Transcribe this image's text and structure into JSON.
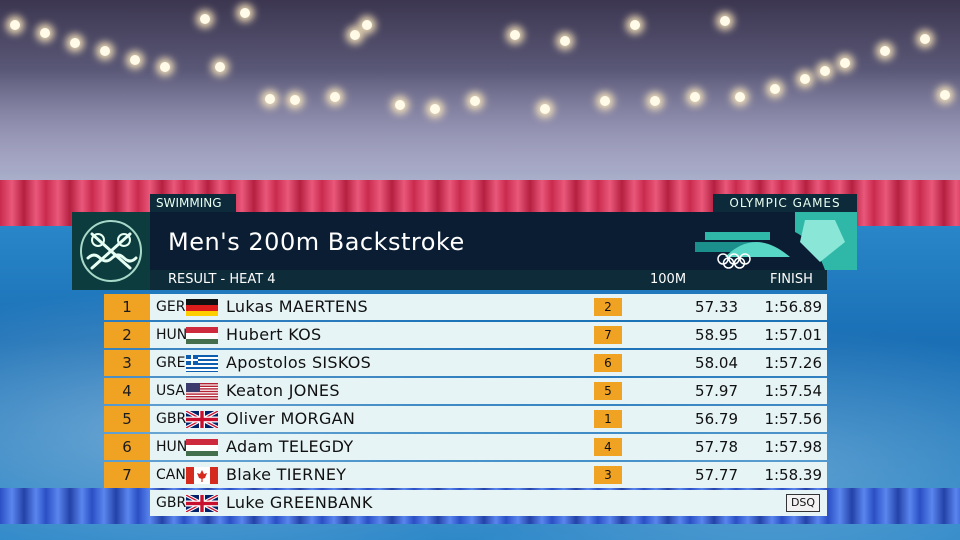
{
  "broadcast": {
    "sport": "SWIMMING",
    "event_title": "Men's 200m Backstroke",
    "olympic_games": "OLYMPIC GAMES",
    "subheader": {
      "result": "RESULT - HEAT 4",
      "split_label": "100M",
      "finish_label": "FINISH"
    }
  },
  "results": [
    {
      "rank": "1",
      "noc": "GER",
      "flag": "germany-flag",
      "name": "Lukas MAERTENS",
      "pos100": "2",
      "split": "57.33",
      "finish": "1:56.89"
    },
    {
      "rank": "2",
      "noc": "HUN",
      "flag": "hungary-flag",
      "name": "Hubert KOS",
      "pos100": "7",
      "split": "58.95",
      "finish": "1:57.01"
    },
    {
      "rank": "3",
      "noc": "GRE",
      "flag": "greece-flag",
      "name": "Apostolos SISKOS",
      "pos100": "6",
      "split": "58.04",
      "finish": "1:57.26"
    },
    {
      "rank": "4",
      "noc": "USA",
      "flag": "usa-flag",
      "name": "Keaton JONES",
      "pos100": "5",
      "split": "57.97",
      "finish": "1:57.54"
    },
    {
      "rank": "5",
      "noc": "GBR",
      "flag": "uk-flag",
      "name": "Oliver MORGAN",
      "pos100": "1",
      "split": "56.79",
      "finish": "1:57.56"
    },
    {
      "rank": "6",
      "noc": "HUN",
      "flag": "hungary-flag",
      "name": "Adam TELEGDY",
      "pos100": "4",
      "split": "57.78",
      "finish": "1:57.98"
    },
    {
      "rank": "7",
      "noc": "CAN",
      "flag": "canada-flag",
      "name": "Blake TIERNEY",
      "pos100": "3",
      "split": "57.77",
      "finish": "1:58.39"
    }
  ],
  "disqualified": {
    "noc": "GBR",
    "flag": "uk-flag",
    "name": "Luke GREENBANK",
    "status": "DSQ"
  },
  "colors": {
    "rank_accent": "#f0a223",
    "row_background": "#e6f4f6",
    "title_background": "#0a1d33",
    "brand_teal": "#2fb8a8"
  }
}
